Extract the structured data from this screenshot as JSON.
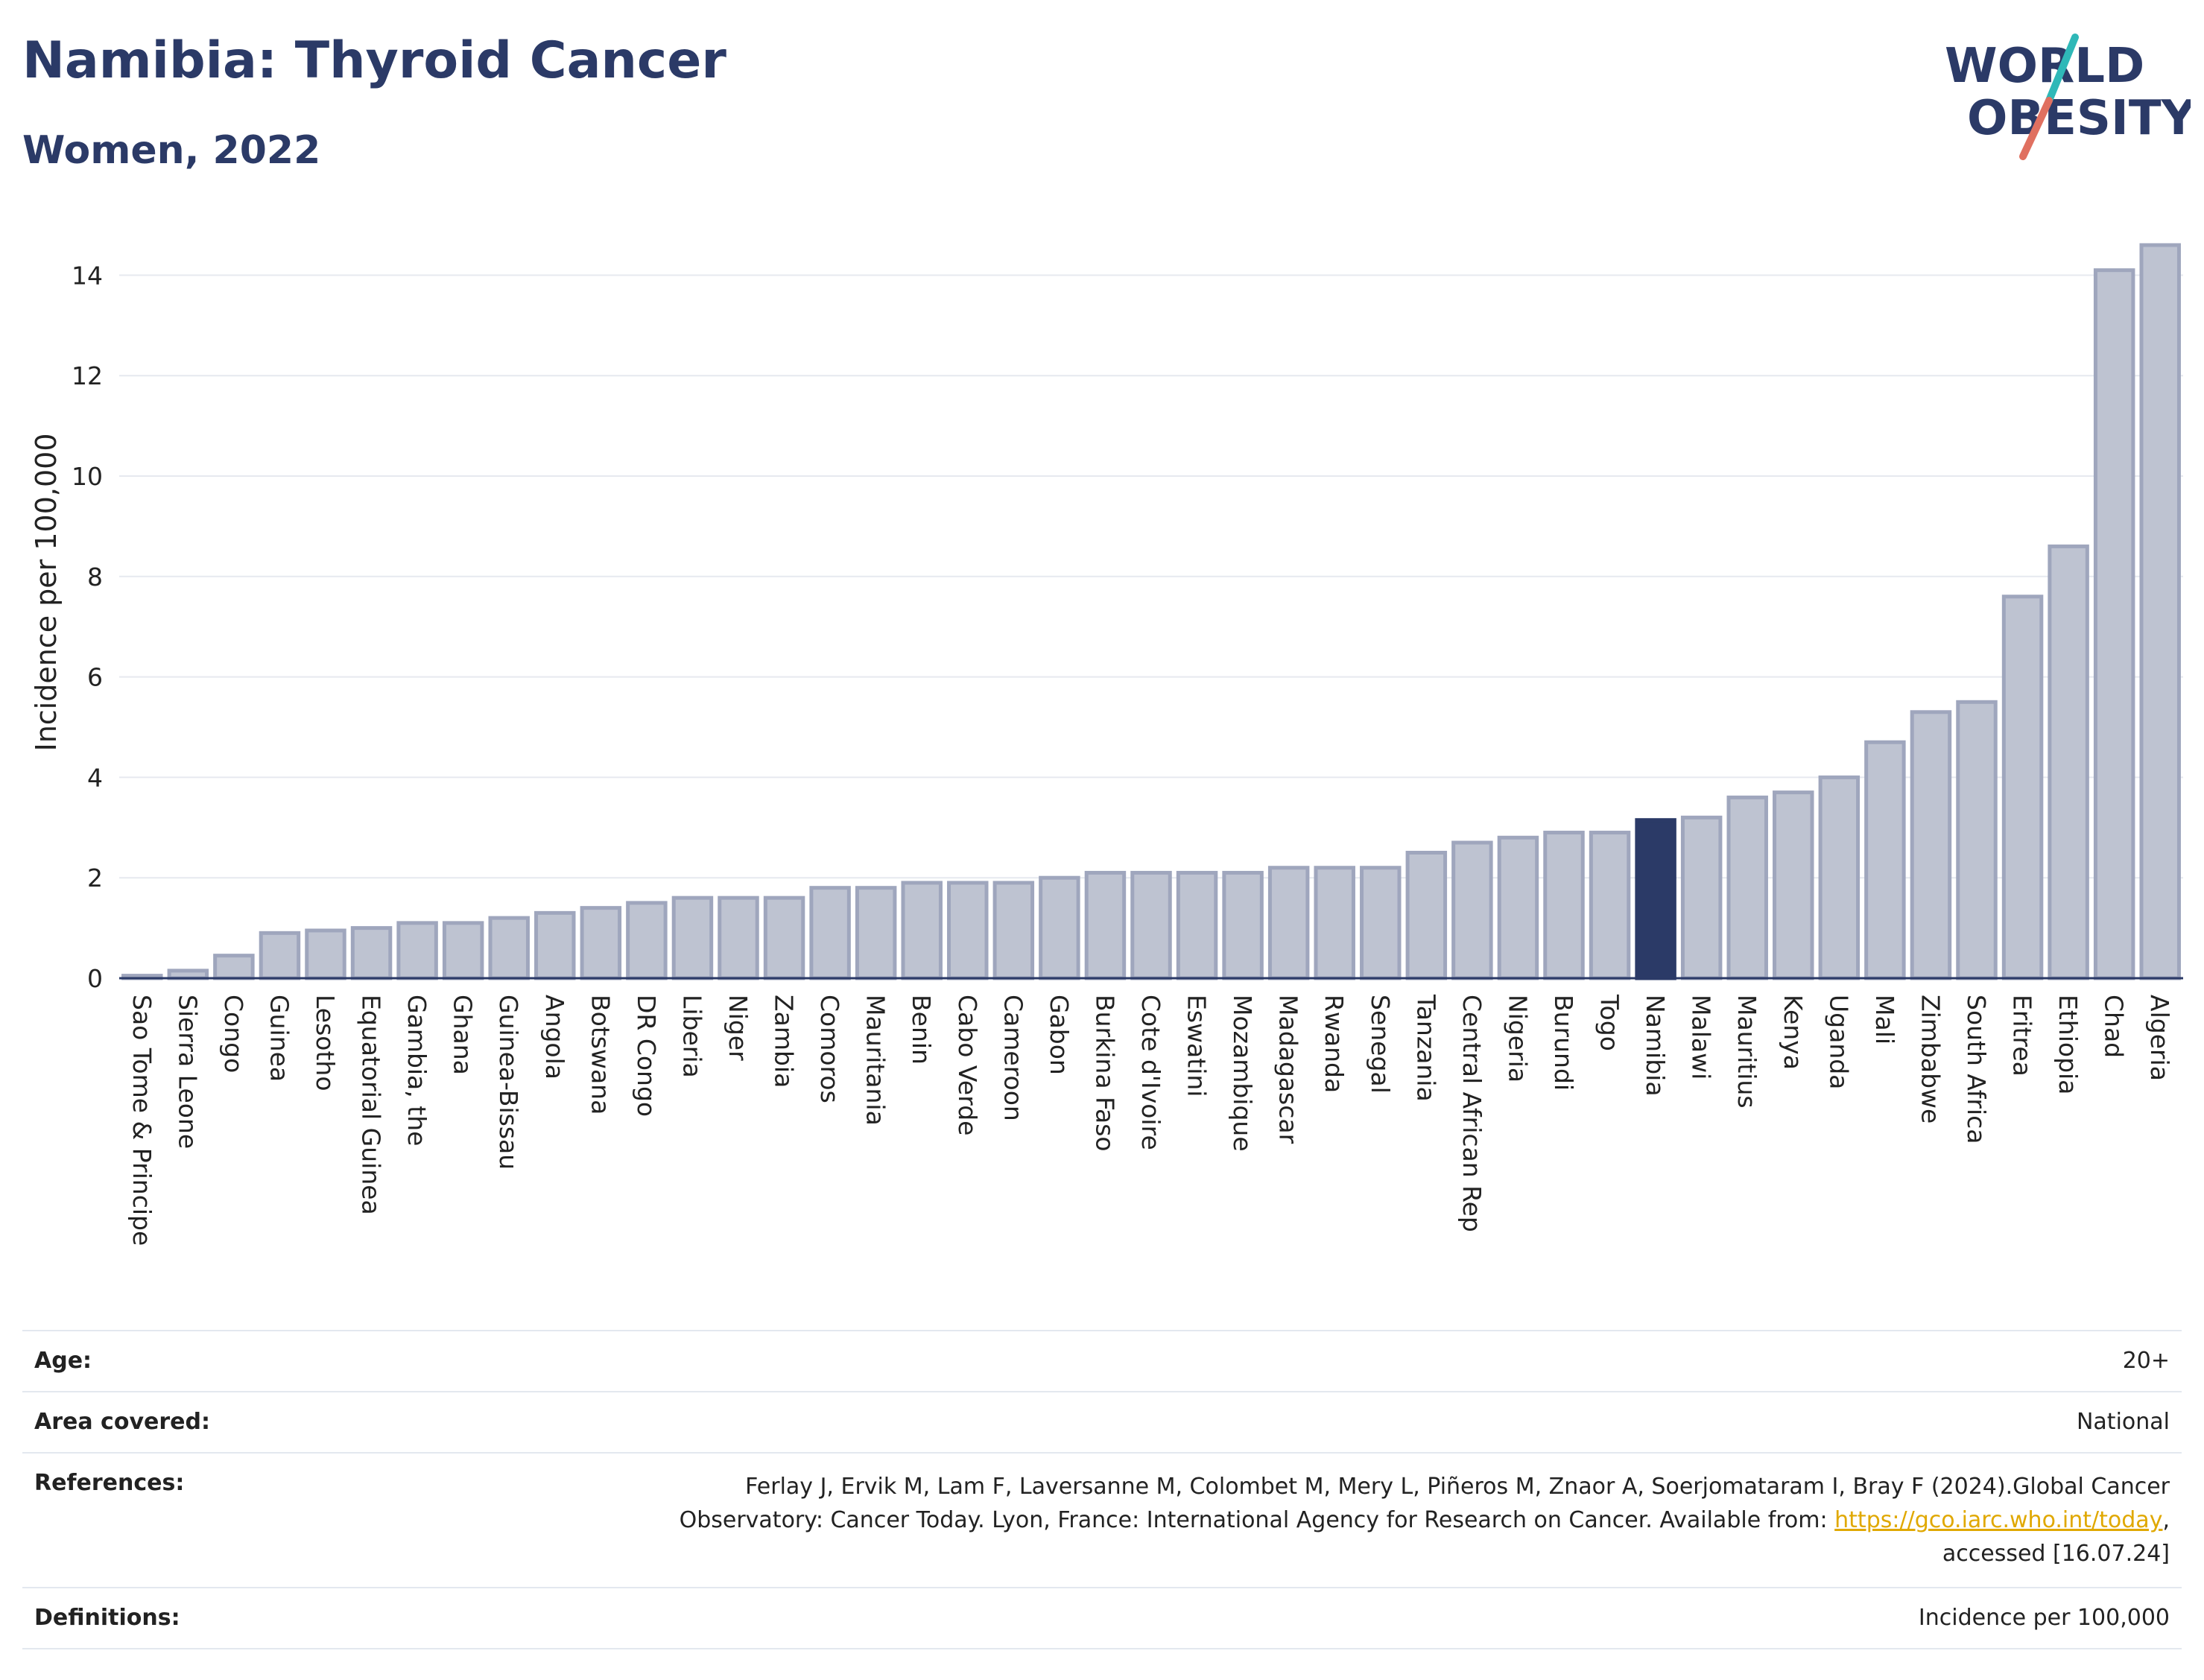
{
  "header": {
    "title": "Namibia: Thyroid Cancer",
    "subtitle": "Women, 2022",
    "logo_line1": "WORLD",
    "logo_line2": "OBESITY"
  },
  "colors": {
    "title": "#2b3a67",
    "bar": "#bec3d1",
    "bar_border": "#9fa6bd",
    "highlight": "#2b3a67",
    "logo_teal": "#2fb8b8",
    "logo_coral": "#e07060",
    "link": "#e0a800"
  },
  "chart_data": {
    "type": "bar",
    "ylabel": "Incidence per 100,000",
    "xlabel": "",
    "ylim": [
      0,
      15
    ],
    "yticks": [
      0,
      2,
      4,
      6,
      8,
      10,
      12,
      14
    ],
    "grid": true,
    "highlight": "Namibia",
    "categories": [
      "Sao Tome & Principe",
      "Sierra Leone",
      "Congo",
      "Guinea",
      "Lesotho",
      "Equatorial Guinea",
      "Gambia, the",
      "Ghana",
      "Guinea-Bissau",
      "Angola",
      "Botswana",
      "DR Congo",
      "Liberia",
      "Niger",
      "Zambia",
      "Comoros",
      "Mauritania",
      "Benin",
      "Cabo Verde",
      "Cameroon",
      "Gabon",
      "Burkina Faso",
      "Cote d'Ivoire",
      "Eswatini",
      "Mozambique",
      "Madagascar",
      "Rwanda",
      "Senegal",
      "Tanzania",
      "Central African Rep",
      "Nigeria",
      "Burundi",
      "Togo",
      "Namibia",
      "Malawi",
      "Mauritius",
      "Kenya",
      "Uganda",
      "Mali",
      "Zimbabwe",
      "South Africa",
      "Eritrea",
      "Ethiopia",
      "Chad",
      "Algeria"
    ],
    "values": [
      0.05,
      0.15,
      0.45,
      0.9,
      0.95,
      1.0,
      1.1,
      1.1,
      1.2,
      1.3,
      1.4,
      1.5,
      1.6,
      1.6,
      1.6,
      1.8,
      1.8,
      1.9,
      1.9,
      1.9,
      2.0,
      2.1,
      2.1,
      2.1,
      2.1,
      2.2,
      2.2,
      2.2,
      2.5,
      2.7,
      2.8,
      2.9,
      2.9,
      3.15,
      3.2,
      3.6,
      3.7,
      4.0,
      4.7,
      5.3,
      5.5,
      7.6,
      8.6,
      14.1,
      14.6
    ]
  },
  "info": {
    "age_label": "Age:",
    "age_value": "20+",
    "area_label": "Area covered:",
    "area_value": "National",
    "references_label": "References:",
    "references_line1": "Ferlay J, Ervik M, Lam F, Laversanne M, Colombet M, Mery L, Piñeros M, Znaor A, Soerjomataram I, Bray F (2024).Global Cancer",
    "references_line2_pre": "Observatory: Cancer Today. Lyon, France: International Agency for Research on Cancer. Available from: ",
    "references_link": "https://gco.iarc.who.int/today",
    "references_line2_post": ",",
    "references_line3": "accessed [16.07.24]",
    "definitions_label": "Definitions:",
    "definitions_value": "Incidence per 100,000"
  }
}
